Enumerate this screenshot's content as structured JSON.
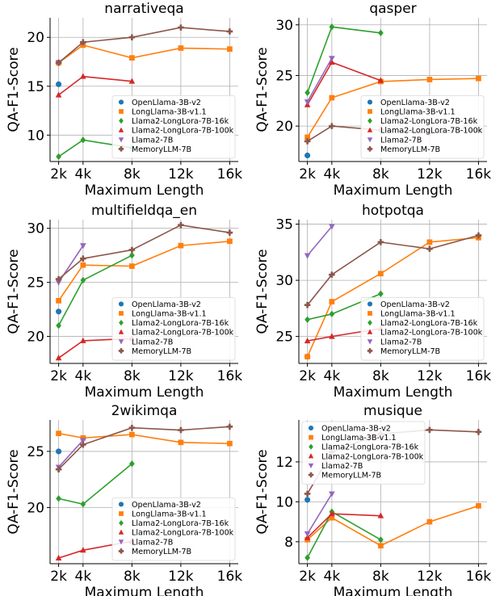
{
  "figure": {
    "series_styles": [
      {
        "name": "OpenLlama-3B-v2",
        "color": "#1f77b4",
        "marker": "circle"
      },
      {
        "name": "LongLlama-3B-v1.1",
        "color": "#ff7f0e",
        "marker": "square"
      },
      {
        "name": "Llama2-LongLora-7B-16k",
        "color": "#2ca02c",
        "marker": "diamond"
      },
      {
        "name": "Llama2-LongLora-7B-100k",
        "color": "#d62728",
        "marker": "triangle-up"
      },
      {
        "name": "Llama2-7B",
        "color": "#9467bd",
        "marker": "triangle-down"
      },
      {
        "name": "MemoryLLM-7B",
        "color": "#8c564b",
        "marker": "plus"
      }
    ]
  },
  "chart_data": [
    {
      "type": "line",
      "title": "narrativeqa",
      "xlabel": "Maximum Length",
      "ylabel": "QA-F1-Score",
      "x": [
        2,
        4,
        8,
        12,
        16
      ],
      "xtick_labels": [
        "2k",
        "4k",
        "8k",
        "12k",
        "16k"
      ],
      "ylim": [
        7.3,
        22.0
      ],
      "yticks": [
        10,
        15,
        20
      ],
      "grid": true,
      "legend_position": "lower-right",
      "series": [
        {
          "name": "OpenLlama-3B-v2",
          "x": [
            2
          ],
          "values": [
            15.2
          ]
        },
        {
          "name": "LongLlama-3B-v1.1",
          "x": [
            2,
            4,
            8,
            12,
            16
          ],
          "values": [
            17.4,
            19.2,
            17.9,
            18.9,
            18.8
          ]
        },
        {
          "name": "Llama2-LongLora-7B-16k",
          "x": [
            2,
            4,
            8
          ],
          "values": [
            7.8,
            9.5,
            8.7
          ]
        },
        {
          "name": "Llama2-LongLora-7B-100k",
          "x": [
            2,
            4,
            8
          ],
          "values": [
            14.1,
            16.0,
            15.5
          ]
        },
        {
          "name": "Llama2-7B",
          "x": [
            2
          ],
          "values": [
            17.4
          ]
        },
        {
          "name": "MemoryLLM-7B",
          "x": [
            2,
            4,
            8,
            12,
            16
          ],
          "values": [
            17.4,
            19.5,
            20.0,
            21.0,
            20.6
          ]
        }
      ]
    },
    {
      "type": "line",
      "title": "qasper",
      "xlabel": "Maximum Length",
      "ylabel": "QA-F1-Score",
      "x": [
        2,
        4,
        8,
        12,
        16
      ],
      "xtick_labels": [
        "2k",
        "4k",
        "8k",
        "12k",
        "16k"
      ],
      "ylim": [
        16.5,
        30.7
      ],
      "yticks": [
        20,
        25,
        30
      ],
      "grid": true,
      "legend_position": "lower-right",
      "series": [
        {
          "name": "OpenLlama-3B-v2",
          "x": [
            2
          ],
          "values": [
            17.1
          ]
        },
        {
          "name": "LongLlama-3B-v1.1",
          "x": [
            2,
            4,
            8,
            12,
            16
          ],
          "values": [
            18.9,
            22.8,
            24.4,
            24.6,
            24.7
          ]
        },
        {
          "name": "Llama2-LongLora-7B-16k",
          "x": [
            2,
            4,
            8
          ],
          "values": [
            23.3,
            29.8,
            29.2
          ]
        },
        {
          "name": "Llama2-LongLora-7B-100k",
          "x": [
            2,
            4,
            8
          ],
          "values": [
            22.1,
            26.3,
            24.5
          ]
        },
        {
          "name": "Llama2-7B",
          "x": [
            2,
            4
          ],
          "values": [
            22.4,
            26.7
          ]
        },
        {
          "name": "MemoryLLM-7B",
          "x": [
            2,
            4,
            8,
            12,
            16
          ],
          "values": [
            18.5,
            20.0,
            19.6,
            19.3,
            19.6
          ]
        }
      ]
    },
    {
      "type": "line",
      "title": "multifieldqa_en",
      "xlabel": "Maximum Length",
      "ylabel": "QA-F1-Score",
      "x": [
        2,
        4,
        8,
        12,
        16
      ],
      "xtick_labels": [
        "2k",
        "4k",
        "8k",
        "12k",
        "16k"
      ],
      "ylim": [
        17.5,
        30.8
      ],
      "yticks": [
        20,
        25,
        30
      ],
      "grid": true,
      "legend_position": "lower-right",
      "series": [
        {
          "name": "OpenLlama-3B-v2",
          "x": [
            2
          ],
          "values": [
            22.3
          ]
        },
        {
          "name": "LongLlama-3B-v1.1",
          "x": [
            2,
            4,
            8,
            12,
            16
          ],
          "values": [
            23.3,
            26.6,
            26.5,
            28.4,
            28.8
          ]
        },
        {
          "name": "Llama2-LongLora-7B-16k",
          "x": [
            2,
            4,
            8
          ],
          "values": [
            21.0,
            25.2,
            27.5
          ]
        },
        {
          "name": "Llama2-LongLora-7B-100k",
          "x": [
            2,
            4,
            8
          ],
          "values": [
            18.0,
            19.6,
            19.8
          ]
        },
        {
          "name": "Llama2-7B",
          "x": [
            2,
            4
          ],
          "values": [
            25.0,
            28.4
          ]
        },
        {
          "name": "MemoryLLM-7B",
          "x": [
            2,
            4,
            8,
            12,
            16
          ],
          "values": [
            25.3,
            27.2,
            28.0,
            30.3,
            29.6
          ]
        }
      ]
    },
    {
      "type": "line",
      "title": "hotpotqa",
      "xlabel": "Maximum Length",
      "ylabel": "QA-F1-Score",
      "x": [
        2,
        4,
        8,
        12,
        16
      ],
      "xtick_labels": [
        "2k",
        "4k",
        "8k",
        "12k",
        "16k"
      ],
      "ylim": [
        22.6,
        35.4
      ],
      "yticks": [
        25,
        30,
        35
      ],
      "grid": true,
      "legend_position": "lower-right",
      "series": [
        {
          "name": "OpenLlama-3B-v2",
          "x": [
            2
          ],
          "values": [
            23.2
          ]
        },
        {
          "name": "LongLlama-3B-v1.1",
          "x": [
            2,
            4,
            8,
            12,
            16
          ],
          "values": [
            23.2,
            28.1,
            30.6,
            33.4,
            33.8
          ]
        },
        {
          "name": "Llama2-LongLora-7B-16k",
          "x": [
            2,
            4,
            8
          ],
          "values": [
            26.5,
            27.0,
            28.8
          ]
        },
        {
          "name": "Llama2-LongLora-7B-100k",
          "x": [
            2,
            4,
            8
          ],
          "values": [
            24.6,
            25.0,
            25.7
          ]
        },
        {
          "name": "Llama2-7B",
          "x": [
            2,
            4
          ],
          "values": [
            32.2,
            34.8
          ]
        },
        {
          "name": "MemoryLLM-7B",
          "x": [
            2,
            4,
            8,
            12,
            16
          ],
          "values": [
            27.8,
            30.5,
            33.4,
            32.8,
            34.0
          ]
        }
      ]
    },
    {
      "type": "line",
      "title": "2wikimqa",
      "xlabel": "Maximum Length",
      "ylabel": "QA-F1-Score",
      "x": [
        2,
        4,
        8,
        12,
        16
      ],
      "xtick_labels": [
        "2k",
        "4k",
        "8k",
        "12k",
        "16k"
      ],
      "ylim": [
        15.0,
        27.8
      ],
      "yticks": [
        20,
        25
      ],
      "grid": true,
      "legend_position": "lower-right",
      "series": [
        {
          "name": "OpenLlama-3B-v2",
          "x": [
            2
          ],
          "values": [
            25.0
          ]
        },
        {
          "name": "LongLlama-3B-v1.1",
          "x": [
            2,
            4,
            8,
            12,
            16
          ],
          "values": [
            26.6,
            26.2,
            26.5,
            25.8,
            25.7
          ]
        },
        {
          "name": "Llama2-LongLora-7B-16k",
          "x": [
            2,
            4,
            8
          ],
          "values": [
            20.8,
            20.3,
            23.9
          ]
        },
        {
          "name": "Llama2-LongLora-7B-100k",
          "x": [
            2,
            4,
            8
          ],
          "values": [
            15.5,
            16.2,
            17.0
          ]
        },
        {
          "name": "Llama2-7B",
          "x": [
            2,
            4
          ],
          "values": [
            23.6,
            26.0
          ]
        },
        {
          "name": "MemoryLLM-7B",
          "x": [
            2,
            4,
            8,
            12,
            16
          ],
          "values": [
            23.4,
            25.6,
            27.1,
            26.9,
            27.2
          ]
        }
      ]
    },
    {
      "type": "line",
      "title": "musique",
      "xlabel": "Maximum Length",
      "ylabel": "QA-F1-Score",
      "x": [
        2,
        4,
        8,
        12,
        16
      ],
      "xtick_labels": [
        "2k",
        "4k",
        "8k",
        "12k",
        "16k"
      ],
      "ylim": [
        6.9,
        14.1
      ],
      "yticks": [
        8,
        10,
        12
      ],
      "grid": true,
      "legend_position": "upper-left",
      "series": [
        {
          "name": "OpenLlama-3B-v2",
          "x": [
            2
          ],
          "values": [
            10.1
          ]
        },
        {
          "name": "LongLlama-3B-v1.1",
          "x": [
            2,
            4,
            8,
            12,
            16
          ],
          "values": [
            8.1,
            9.2,
            7.8,
            9.0,
            9.8
          ]
        },
        {
          "name": "Llama2-LongLora-7B-16k",
          "x": [
            2,
            4,
            8
          ],
          "values": [
            7.2,
            9.5,
            8.1
          ]
        },
        {
          "name": "Llama2-LongLora-7B-100k",
          "x": [
            2,
            4,
            8
          ],
          "values": [
            8.2,
            9.4,
            9.3
          ]
        },
        {
          "name": "Llama2-7B",
          "x": [
            2,
            4
          ],
          "values": [
            8.4,
            10.4
          ]
        },
        {
          "name": "MemoryLLM-7B",
          "x": [
            2,
            4,
            8,
            12,
            16
          ],
          "values": [
            10.4,
            12.5,
            13.4,
            13.6,
            13.5
          ]
        }
      ]
    }
  ]
}
